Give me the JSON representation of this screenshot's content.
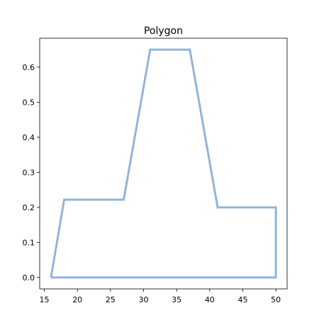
{
  "chart_data": {
    "type": "line",
    "title": "Polygon",
    "xlabel": "",
    "ylabel": "",
    "xlim": [
      14.3,
      51.7
    ],
    "ylim": [
      -0.0325,
      0.6825
    ],
    "xticks": [
      15,
      20,
      25,
      30,
      35,
      40,
      45,
      50
    ],
    "yticks": [
      0.0,
      0.1,
      0.2,
      0.3,
      0.4,
      0.5,
      0.6
    ],
    "ytick_labels": [
      "0.0",
      "0.1",
      "0.2",
      "0.3",
      "0.4",
      "0.5",
      "0.6"
    ],
    "grid": false,
    "legend": "none",
    "series": [
      {
        "color": "#92b4d9",
        "closed": true,
        "x": [
          16,
          18,
          27,
          31,
          37,
          41.2,
          50,
          50,
          16
        ],
        "y": [
          0,
          0.222,
          0.222,
          0.65,
          0.65,
          0.2,
          0.2,
          0,
          0
        ]
      }
    ]
  }
}
